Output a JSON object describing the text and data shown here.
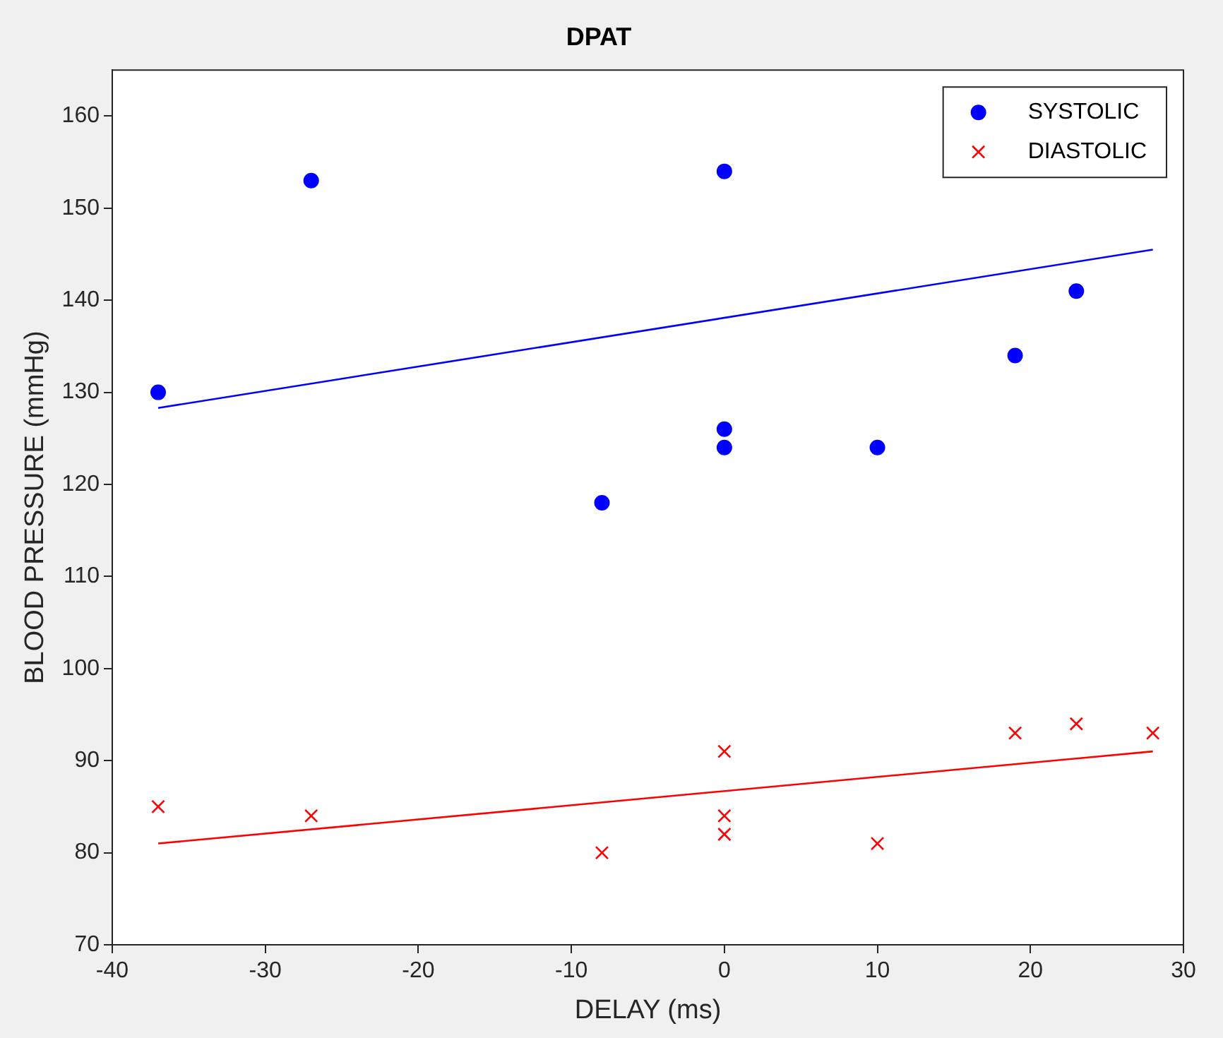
{
  "chart_data": {
    "type": "scatter",
    "title": "DPAT",
    "xlabel": "DELAY (ms)",
    "ylabel": "BLOOD PRESSURE (mmHg)",
    "xlim": [
      -40,
      30
    ],
    "xticks": [
      -40,
      -30,
      -20,
      -10,
      0,
      10,
      20,
      30
    ],
    "ylim": [
      70,
      165
    ],
    "yticks": [
      70,
      80,
      90,
      100,
      110,
      120,
      130,
      140,
      150,
      160
    ],
    "grid": false,
    "legend": "top right",
    "series": [
      {
        "name": "SYSTOLIC",
        "type": "scatter",
        "marker": "circle",
        "color": "#0000ff",
        "x": [
          -37,
          -27,
          0,
          -8,
          0,
          0,
          10,
          19,
          23
        ],
        "values": [
          130,
          153,
          154,
          118,
          126,
          124,
          124,
          134,
          141
        ]
      },
      {
        "name": "DIASTOLIC",
        "type": "scatter",
        "marker": "cross",
        "color": "#ff0000",
        "x": [
          -37,
          -27,
          -8,
          0,
          0,
          0,
          10,
          19,
          23,
          28
        ],
        "values": [
          85,
          84,
          80,
          91,
          84,
          82,
          81,
          93,
          94,
          93
        ]
      },
      {
        "type": "line",
        "line_style": "solid",
        "color": "#0000ff",
        "x": [
          -37,
          28
        ],
        "values": [
          128.3,
          145.5
        ]
      },
      {
        "type": "line",
        "line_style": "solid",
        "color": "#ff0000",
        "x": [
          -37,
          28
        ],
        "values": [
          81,
          91
        ]
      }
    ]
  }
}
